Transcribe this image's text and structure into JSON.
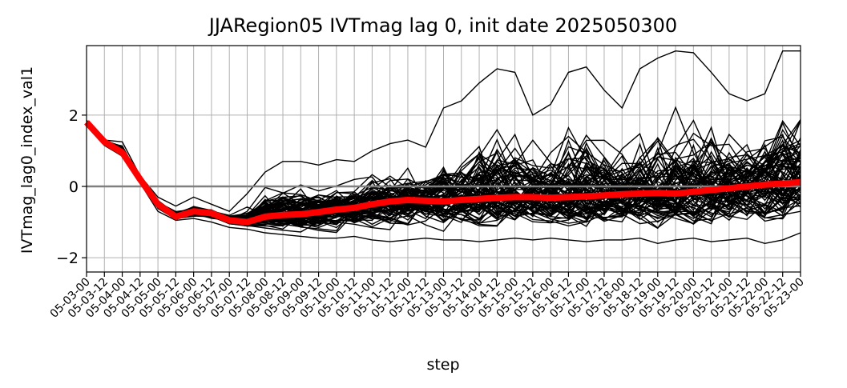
{
  "chart_data": {
    "type": "line",
    "title": "JJARegion05 IVTmag lag 0, init date 2025050300",
    "xlabel": "step",
    "ylabel": "IVTmag_lag0_index_val1",
    "ylim": [
      -2.4,
      3.95
    ],
    "yticks": [
      -2,
      0,
      2
    ],
    "ytick_labels": [
      "−2",
      "0",
      "2"
    ],
    "grid": true,
    "reference_line": {
      "y": 0,
      "color": "#808080"
    },
    "categories": [
      "05-03-00",
      "05-03-12",
      "05-04-00",
      "05-04-12",
      "05-05-00",
      "05-05-12",
      "05-06-00",
      "05-06-12",
      "05-07-00",
      "05-07-12",
      "05-08-00",
      "05-08-12",
      "05-09-00",
      "05-09-12",
      "05-10-00",
      "05-10-12",
      "05-11-00",
      "05-11-12",
      "05-12-00",
      "05-12-12",
      "05-13-00",
      "05-13-12",
      "05-14-00",
      "05-14-12",
      "05-15-00",
      "05-15-12",
      "05-16-00",
      "05-16-12",
      "05-17-00",
      "05-17-12",
      "05-18-00",
      "05-18-12",
      "05-19-00",
      "05-19-12",
      "05-20-00",
      "05-20-12",
      "05-21-00",
      "05-21-12",
      "05-22-00",
      "05-22-12",
      "05-23-00"
    ],
    "ensemble_members": 80,
    "ensemble_color": "#000000",
    "ensemble_mean": {
      "color": "#ff0000",
      "values": [
        1.8,
        1.25,
        0.95,
        0.2,
        -0.5,
        -0.85,
        -0.7,
        -0.75,
        -0.95,
        -1.0,
        -0.85,
        -0.8,
        -0.78,
        -0.72,
        -0.65,
        -0.6,
        -0.5,
        -0.42,
        -0.38,
        -0.4,
        -0.42,
        -0.38,
        -0.35,
        -0.32,
        -0.3,
        -0.3,
        -0.32,
        -0.3,
        -0.28,
        -0.25,
        -0.22,
        -0.2,
        -0.18,
        -0.2,
        -0.15,
        -0.1,
        -0.05,
        0.0,
        0.05,
        0.08,
        0.12
      ]
    },
    "ensemble_envelope": {
      "upper": [
        1.85,
        1.3,
        1.25,
        0.3,
        -0.3,
        -0.55,
        -0.3,
        -0.5,
        -0.7,
        -0.2,
        0.4,
        0.7,
        0.7,
        0.6,
        0.75,
        0.7,
        1.0,
        1.2,
        1.3,
        1.1,
        2.2,
        2.4,
        2.9,
        3.3,
        3.2,
        2.0,
        2.3,
        3.2,
        3.35,
        2.7,
        2.2,
        3.3,
        3.6,
        3.8,
        3.75,
        3.2,
        2.6,
        2.4,
        2.6,
        3.8,
        3.8
      ],
      "lower": [
        1.7,
        1.15,
        0.85,
        0.1,
        -0.7,
        -0.95,
        -0.9,
        -1.0,
        -1.15,
        -1.2,
        -1.3,
        -1.35,
        -1.4,
        -1.45,
        -1.45,
        -1.4,
        -1.5,
        -1.55,
        -1.5,
        -1.45,
        -1.5,
        -1.5,
        -1.55,
        -1.5,
        -1.45,
        -1.5,
        -1.45,
        -1.5,
        -1.55,
        -1.5,
        -1.5,
        -1.45,
        -1.6,
        -1.5,
        -1.45,
        -1.55,
        -1.5,
        -1.45,
        -1.6,
        -1.5,
        -1.3
      ]
    }
  }
}
